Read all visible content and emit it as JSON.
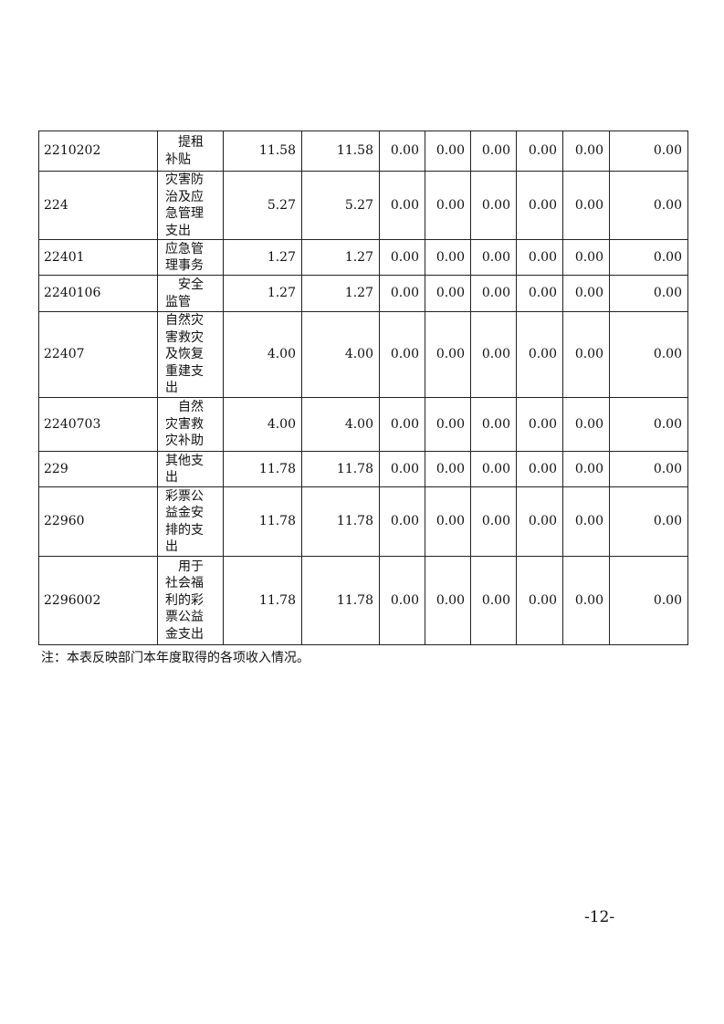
{
  "rows": [
    {
      "code": "2210202",
      "name": "　提租补贴",
      "values": [
        "11.58",
        "11.58",
        "0.00",
        "0.00",
        "0.00",
        "0.00",
        "0.00",
        "0.00"
      ]
    },
    {
      "code": "224",
      "name": "灾害防治及应急管理支出",
      "values": [
        "5.27",
        "5.27",
        "0.00",
        "0.00",
        "0.00",
        "0.00",
        "0.00",
        "0.00"
      ]
    },
    {
      "code": "22401",
      "name": "应急管理事务",
      "values": [
        "1.27",
        "1.27",
        "0.00",
        "0.00",
        "0.00",
        "0.00",
        "0.00",
        "0.00"
      ]
    },
    {
      "code": "2240106",
      "name": "　安全监管",
      "values": [
        "1.27",
        "1.27",
        "0.00",
        "0.00",
        "0.00",
        "0.00",
        "0.00",
        "0.00"
      ]
    },
    {
      "code": "22407",
      "name": "自然灾害救灾及恢复重建支出",
      "values": [
        "4.00",
        "4.00",
        "0.00",
        "0.00",
        "0.00",
        "0.00",
        "0.00",
        "0.00"
      ]
    },
    {
      "code": "2240703",
      "name": "　自然灾害救灾补助",
      "values": [
        "4.00",
        "4.00",
        "0.00",
        "0.00",
        "0.00",
        "0.00",
        "0.00",
        "0.00"
      ]
    },
    {
      "code": "229",
      "name": "其他支出",
      "values": [
        "11.78",
        "11.78",
        "0.00",
        "0.00",
        "0.00",
        "0.00",
        "0.00",
        "0.00"
      ]
    },
    {
      "code": "22960",
      "name": "彩票公益金安排的支出",
      "values": [
        "11.78",
        "11.78",
        "0.00",
        "0.00",
        "0.00",
        "0.00",
        "0.00",
        "0.00"
      ]
    },
    {
      "code": "2296002",
      "name": "　用于社会福利的彩票公益金支出",
      "values": [
        "11.78",
        "11.78",
        "0.00",
        "0.00",
        "0.00",
        "0.00",
        "0.00",
        "0.00"
      ]
    }
  ],
  "note": "注：本表反映部门本年度取得的各项收入情况。",
  "page_number": "-12-"
}
